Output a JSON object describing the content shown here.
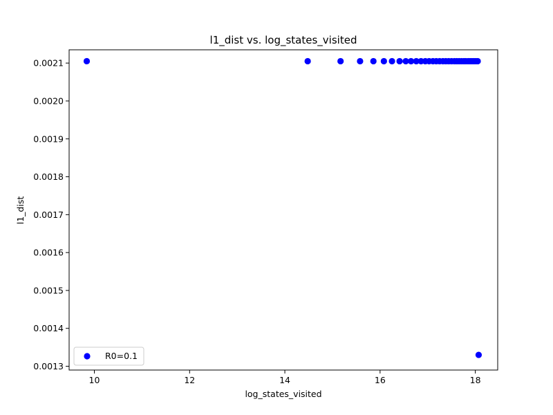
{
  "chart_data": {
    "type": "scatter",
    "title": "l1_dist vs. log_states_visited",
    "xlabel": "log_states_visited",
    "ylabel": "l1_dist",
    "xlim": [
      9.47,
      18.47
    ],
    "ylim": [
      0.00129,
      0.002135
    ],
    "xticks": [
      10,
      12,
      14,
      16,
      18
    ],
    "xtick_labels": [
      "10",
      "12",
      "14",
      "16",
      "18"
    ],
    "yticks": [
      0.0013,
      0.0014,
      0.0015,
      0.0016,
      0.0017,
      0.0018,
      0.0019,
      0.002,
      0.0021
    ],
    "ytick_labels": [
      "0.0013",
      "0.0014",
      "0.0015",
      "0.0016",
      "0.0017",
      "0.0018",
      "0.0019",
      "0.0020",
      "0.0021"
    ],
    "grid": false,
    "legend_position": "lower-left",
    "marker_color": "#0000ff",
    "series": [
      {
        "name": "R0=0.1",
        "x": [
          9.84,
          14.48,
          15.17,
          15.58,
          15.86,
          16.08,
          16.25,
          16.41,
          16.54,
          16.65,
          16.76,
          16.86,
          16.95,
          17.03,
          17.11,
          17.18,
          17.25,
          17.32,
          17.38,
          17.44,
          17.5,
          17.56,
          17.61,
          17.66,
          17.71,
          17.76,
          17.8,
          17.85,
          17.89,
          17.93,
          17.97,
          18.01,
          18.05,
          18.07
        ],
        "y": [
          0.002105,
          0.002105,
          0.002105,
          0.002105,
          0.002105,
          0.002105,
          0.002105,
          0.002105,
          0.002105,
          0.002105,
          0.002105,
          0.002105,
          0.002105,
          0.002105,
          0.002105,
          0.002105,
          0.002105,
          0.002105,
          0.002105,
          0.002105,
          0.002105,
          0.002105,
          0.002105,
          0.002105,
          0.002105,
          0.002105,
          0.002105,
          0.002105,
          0.002105,
          0.002105,
          0.002105,
          0.002105,
          0.002105,
          0.00133
        ]
      }
    ]
  }
}
